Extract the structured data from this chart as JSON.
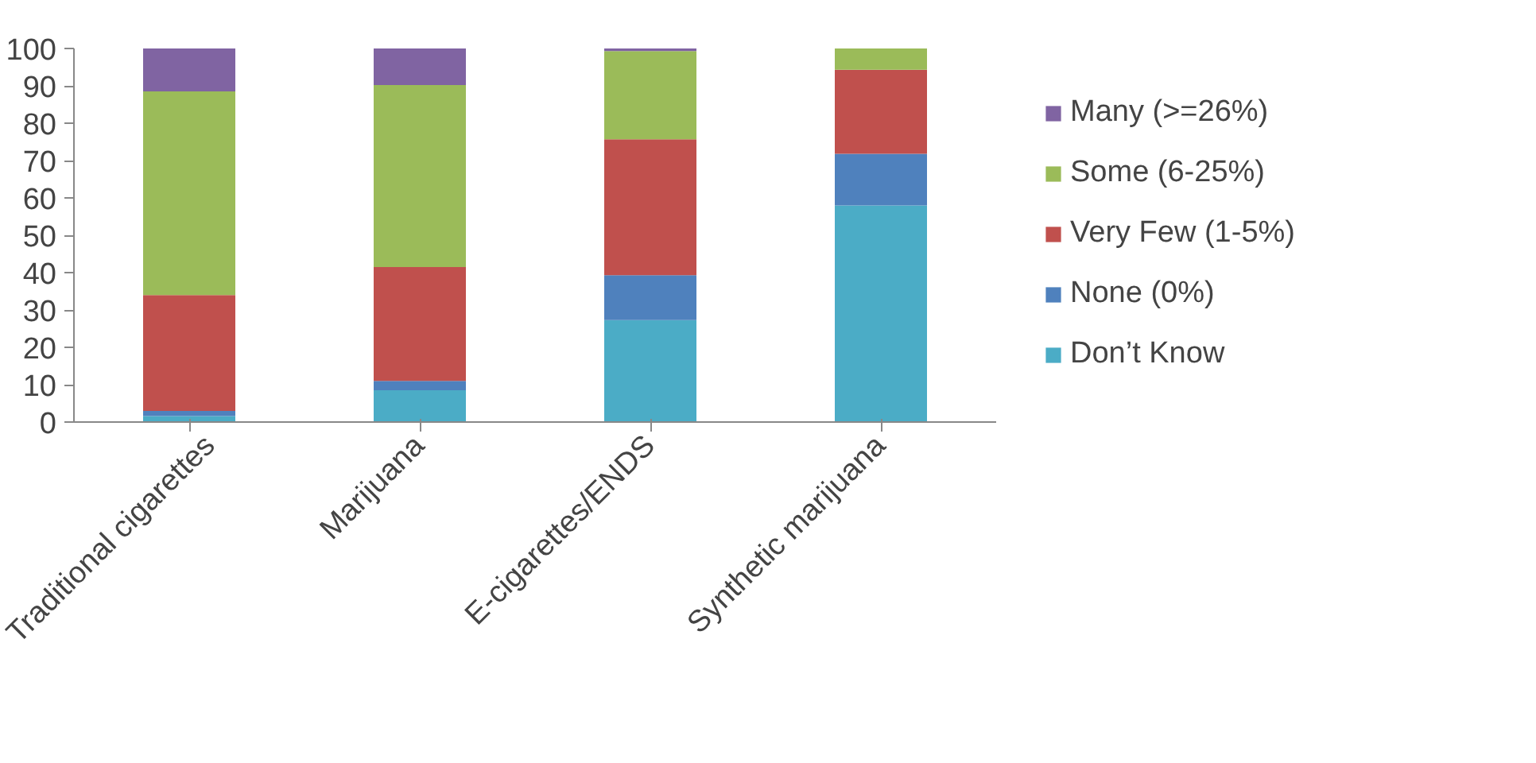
{
  "chart_data": {
    "type": "bar",
    "stacked": true,
    "categories": [
      "Traditional cigarettes",
      "Marijuana",
      "E-cigarettes/ENDS",
      "Synthetic marijuana"
    ],
    "series": [
      {
        "name": "Don’t Know",
        "color": "#4bacc6",
        "values": [
          1.6,
          8.5,
          27.3,
          58.0
        ]
      },
      {
        "name": "None (0%)",
        "color": "#4f81bd",
        "values": [
          1.4,
          2.5,
          12.0,
          13.8
        ]
      },
      {
        "name": "Very Few (1-5%)",
        "color": "#c0504d",
        "values": [
          31.0,
          30.5,
          36.4,
          22.5
        ]
      },
      {
        "name": "Some (6-25%)",
        "color": "#9bbb59",
        "values": [
          54.5,
          48.7,
          23.6,
          5.7
        ]
      },
      {
        "name": "Many (>=26%)",
        "color": "#8064a2",
        "values": [
          11.5,
          9.8,
          0.7,
          0
        ]
      }
    ],
    "ylim": [
      0,
      100
    ],
    "yticks": [
      0,
      10,
      20,
      30,
      40,
      50,
      60,
      70,
      80,
      90,
      100
    ],
    "grid": false,
    "legend": "right"
  }
}
